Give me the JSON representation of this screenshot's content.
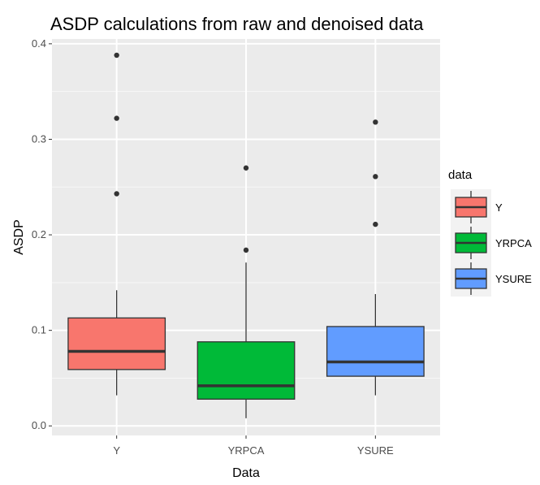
{
  "chart_data": {
    "type": "boxplot",
    "title": "ASDP calculations from raw and denoised data",
    "xlabel": "Data",
    "ylabel": "ASDP",
    "ylim": [
      -0.01,
      0.405
    ],
    "yticks": [
      0.0,
      0.1,
      0.2,
      0.3,
      0.4
    ],
    "ytick_labels": [
      "0.0",
      "0.1",
      "0.2",
      "0.3",
      "0.4"
    ],
    "categories": [
      "Y",
      "YRPCA",
      "YSURE"
    ],
    "legend": {
      "title": "data",
      "position": "right"
    },
    "grid": true,
    "boxes": [
      {
        "name": "Y",
        "color": "#F8766D",
        "min": 0.032,
        "q1": 0.059,
        "median": 0.078,
        "q3": 0.113,
        "max": 0.142,
        "outliers": [
          0.243,
          0.322,
          0.388
        ]
      },
      {
        "name": "YRPCA",
        "color": "#00BA38",
        "min": 0.008,
        "q1": 0.028,
        "median": 0.042,
        "q3": 0.088,
        "max": 0.171,
        "outliers": [
          0.184,
          0.27
        ]
      },
      {
        "name": "YSURE",
        "color": "#619CFF",
        "min": 0.032,
        "q1": 0.052,
        "median": 0.067,
        "q3": 0.104,
        "max": 0.138,
        "outliers": [
          0.211,
          0.261,
          0.318
        ]
      }
    ]
  }
}
